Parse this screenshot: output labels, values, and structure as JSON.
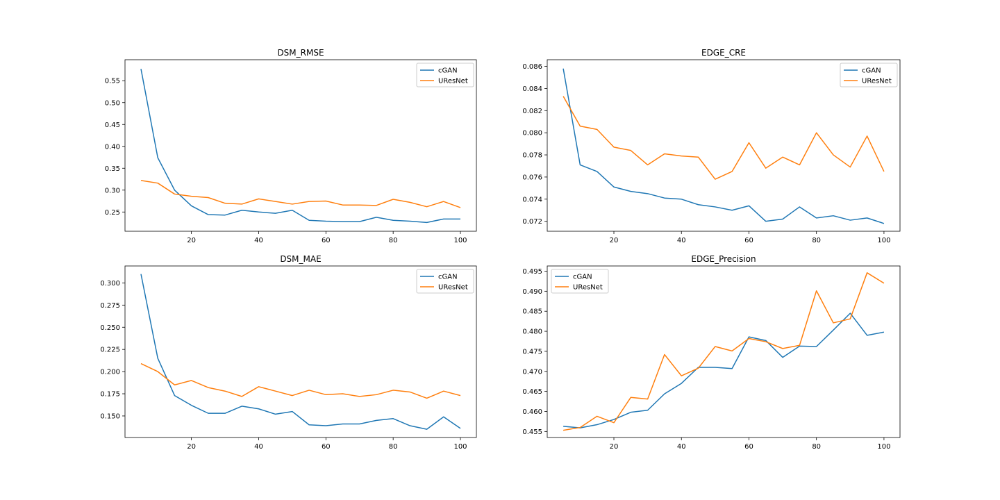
{
  "chart_data": [
    {
      "type": "line",
      "title": "DSM_RMSE",
      "xlabel": "",
      "ylabel": "",
      "x": [
        5,
        10,
        15,
        20,
        25,
        30,
        35,
        40,
        45,
        50,
        55,
        60,
        65,
        70,
        75,
        80,
        85,
        90,
        95,
        100
      ],
      "xlim": [
        0.25,
        104.75
      ],
      "ylim": [
        0.206,
        0.598
      ],
      "xticks": [
        20,
        40,
        60,
        80,
        100
      ],
      "yticks": [
        0.25,
        0.3,
        0.35,
        0.4,
        0.45,
        0.5,
        0.55
      ],
      "ytick_labels": [
        "0.25",
        "0.30",
        "0.35",
        "0.40",
        "0.45",
        "0.50",
        "0.55"
      ],
      "legend": "top-right",
      "grid": false,
      "series": [
        {
          "name": "cGAN",
          "color": "#1f77b4",
          "values": [
            0.577,
            0.374,
            0.3,
            0.264,
            0.244,
            0.243,
            0.254,
            0.25,
            0.247,
            0.254,
            0.231,
            0.229,
            0.228,
            0.228,
            0.238,
            0.231,
            0.229,
            0.226,
            0.234,
            0.234
          ]
        },
        {
          "name": "UResNet",
          "color": "#ff7f0e",
          "values": [
            0.322,
            0.316,
            0.291,
            0.286,
            0.283,
            0.27,
            0.268,
            0.28,
            0.274,
            0.268,
            0.274,
            0.275,
            0.266,
            0.266,
            0.265,
            0.279,
            0.272,
            0.262,
            0.274,
            0.26
          ]
        }
      ]
    },
    {
      "type": "line",
      "title": "EDGE_CRE",
      "xlabel": "",
      "ylabel": "",
      "x": [
        5,
        10,
        15,
        20,
        25,
        30,
        35,
        40,
        45,
        50,
        55,
        60,
        65,
        70,
        75,
        80,
        85,
        90,
        95,
        100
      ],
      "xlim": [
        0.25,
        104.75
      ],
      "ylim": [
        0.0711,
        0.0866
      ],
      "xticks": [
        20,
        40,
        60,
        80,
        100
      ],
      "yticks": [
        0.072,
        0.074,
        0.076,
        0.078,
        0.08,
        0.082,
        0.084,
        0.086
      ],
      "ytick_labels": [
        "0.072",
        "0.074",
        "0.076",
        "0.078",
        "0.080",
        "0.082",
        "0.084",
        "0.086"
      ],
      "legend": "top-right",
      "grid": false,
      "series": [
        {
          "name": "cGAN",
          "color": "#1f77b4",
          "values": [
            0.0858,
            0.0771,
            0.0765,
            0.0751,
            0.0747,
            0.0745,
            0.0741,
            0.074,
            0.0735,
            0.0733,
            0.073,
            0.0734,
            0.072,
            0.0722,
            0.0733,
            0.0723,
            0.0725,
            0.0721,
            0.0723,
            0.0718
          ]
        },
        {
          "name": "UResNet",
          "color": "#ff7f0e",
          "values": [
            0.0833,
            0.0806,
            0.0803,
            0.0787,
            0.0784,
            0.0771,
            0.0781,
            0.0779,
            0.0778,
            0.0758,
            0.0765,
            0.0791,
            0.0768,
            0.0778,
            0.0771,
            0.08,
            0.078,
            0.0769,
            0.0797,
            0.0765
          ]
        }
      ]
    },
    {
      "type": "line",
      "title": "DSM_MAE",
      "xlabel": "",
      "ylabel": "",
      "x": [
        5,
        10,
        15,
        20,
        25,
        30,
        35,
        40,
        45,
        50,
        55,
        60,
        65,
        70,
        75,
        80,
        85,
        90,
        95,
        100
      ],
      "xlim": [
        0.25,
        104.75
      ],
      "ylim": [
        0.1257,
        0.3191
      ],
      "xticks": [
        20,
        40,
        60,
        80,
        100
      ],
      "yticks": [
        0.15,
        0.175,
        0.2,
        0.225,
        0.25,
        0.275,
        0.3
      ],
      "ytick_labels": [
        "0.150",
        "0.175",
        "0.200",
        "0.225",
        "0.250",
        "0.275",
        "0.300"
      ],
      "legend": "top-right",
      "grid": false,
      "series": [
        {
          "name": "cGAN",
          "color": "#1f77b4",
          "values": [
            0.31,
            0.215,
            0.173,
            0.162,
            0.153,
            0.153,
            0.161,
            0.158,
            0.152,
            0.155,
            0.14,
            0.139,
            0.141,
            0.141,
            0.145,
            0.147,
            0.139,
            0.135,
            0.149,
            0.136
          ]
        },
        {
          "name": "UResNet",
          "color": "#ff7f0e",
          "values": [
            0.209,
            0.2,
            0.185,
            0.19,
            0.182,
            0.178,
            0.172,
            0.183,
            0.178,
            0.173,
            0.179,
            0.174,
            0.175,
            0.172,
            0.174,
            0.179,
            0.177,
            0.17,
            0.178,
            0.173
          ]
        }
      ]
    },
    {
      "type": "line",
      "title": "EDGE_Precision",
      "xlabel": "",
      "ylabel": "",
      "x": [
        5,
        10,
        15,
        20,
        25,
        30,
        35,
        40,
        45,
        50,
        55,
        60,
        65,
        70,
        75,
        80,
        85,
        90,
        95,
        100
      ],
      "xlim": [
        0.25,
        104.75
      ],
      "ylim": [
        0.4535,
        0.4963
      ],
      "xticks": [
        20,
        40,
        60,
        80,
        100
      ],
      "yticks": [
        0.455,
        0.46,
        0.465,
        0.47,
        0.475,
        0.48,
        0.485,
        0.49,
        0.495
      ],
      "ytick_labels": [
        "0.455",
        "0.460",
        "0.465",
        "0.470",
        "0.475",
        "0.480",
        "0.485",
        "0.490",
        "0.495"
      ],
      "legend": "top-left",
      "grid": false,
      "series": [
        {
          "name": "cGAN",
          "color": "#1f77b4",
          "values": [
            0.4563,
            0.4559,
            0.4567,
            0.458,
            0.4598,
            0.4603,
            0.4644,
            0.467,
            0.471,
            0.471,
            0.4707,
            0.4786,
            0.4777,
            0.4735,
            0.4763,
            0.4762,
            0.4803,
            0.4845,
            0.479,
            0.4798
          ]
        },
        {
          "name": "UResNet",
          "color": "#ff7f0e",
          "values": [
            0.4553,
            0.456,
            0.4588,
            0.4572,
            0.4635,
            0.4631,
            0.4742,
            0.4689,
            0.4708,
            0.4762,
            0.4751,
            0.4782,
            0.4774,
            0.4757,
            0.4765,
            0.4901,
            0.4821,
            0.4831,
            0.4946,
            0.492
          ]
        }
      ]
    }
  ]
}
